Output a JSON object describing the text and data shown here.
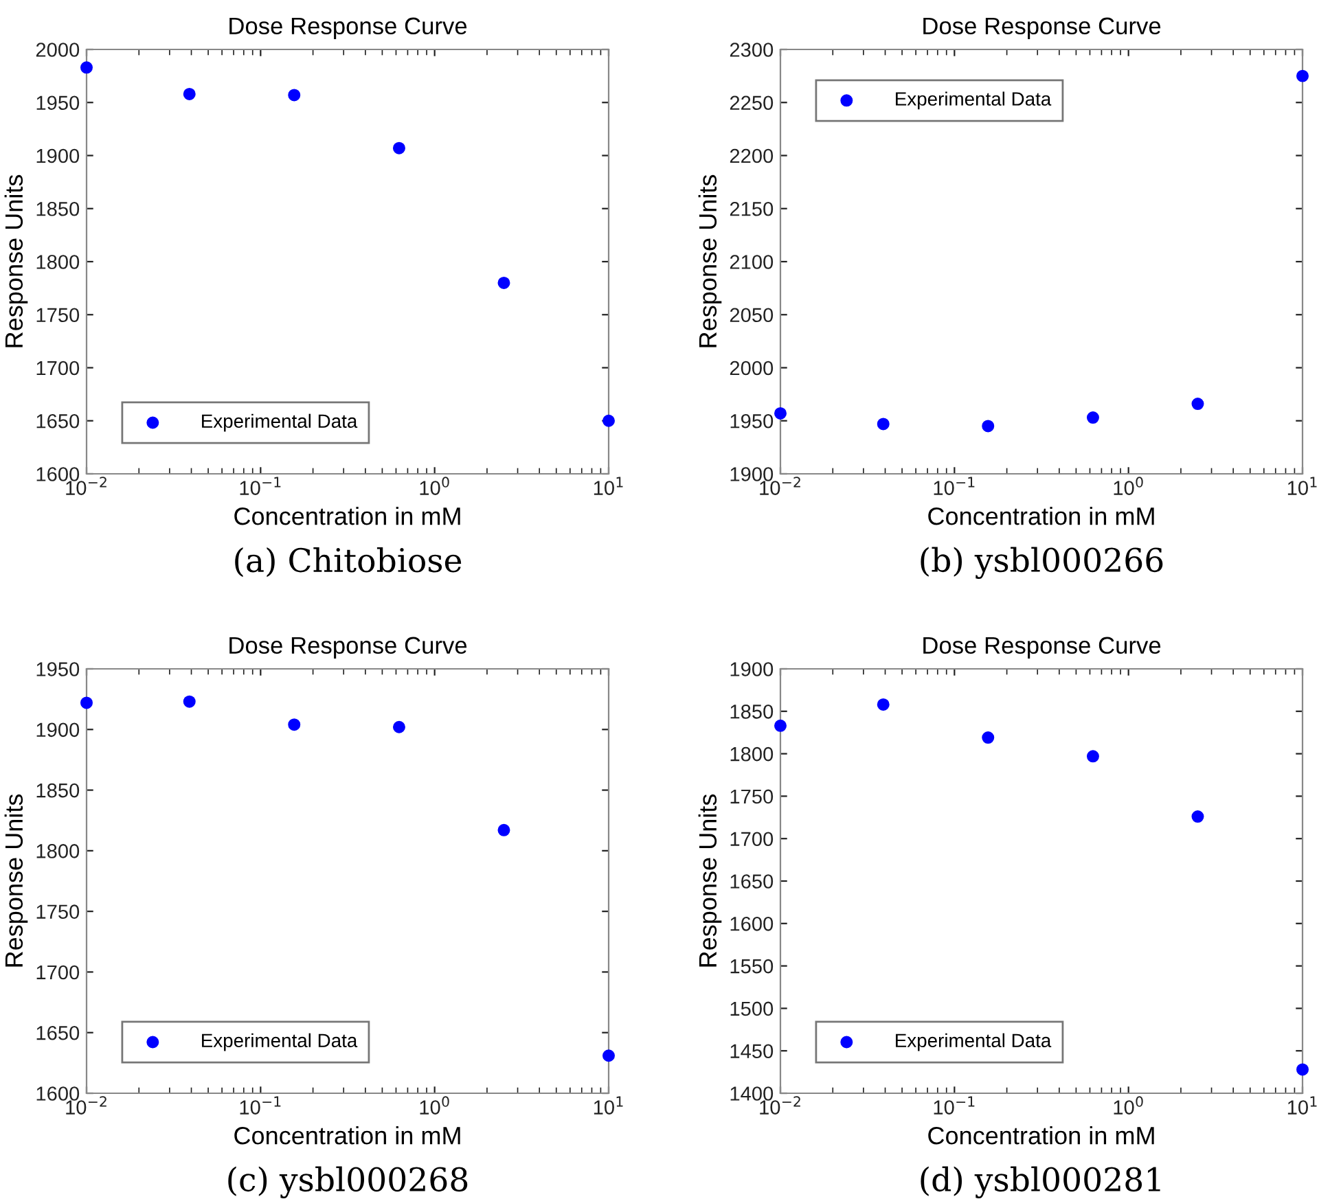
{
  "chart_data": [
    {
      "type": "scatter",
      "title": "Dose Response Curve",
      "xlabel": "Concentration in mM",
      "ylabel": "Response Units",
      "annotations": [
        "(a) Chitobiose"
      ],
      "log": "x",
      "xlim": [
        0.01,
        10
      ],
      "xticks": [
        {
          "value": 0.01,
          "label": "10$^{−2}$"
        },
        {
          "value": 0.1,
          "label": "10$^{−1}$"
        },
        {
          "value": 1,
          "label": "10$^{0}$"
        },
        {
          "value": 10,
          "label": "10$^{1}$"
        }
      ],
      "ylim": [
        1600,
        2000
      ],
      "yticks": [
        1600,
        1650,
        1700,
        1750,
        1800,
        1850,
        1900,
        1950,
        2000
      ],
      "grid": false,
      "legend": "bottom left",
      "marker": "circle",
      "series": [
        {
          "name": "Experimental Data",
          "color": "#0000ff",
          "x": [
            0.01,
            0.039,
            0.156,
            0.625,
            2.5,
            10
          ],
          "values": [
            1983,
            1958,
            1957,
            1907,
            1780,
            1650
          ]
        }
      ]
    },
    {
      "type": "scatter",
      "title": "Dose Response Curve",
      "xlabel": "Concentration in mM",
      "ylabel": "Response Units",
      "annotations": [
        "(b) ysbl000266"
      ],
      "log": "x",
      "xlim": [
        0.01,
        10
      ],
      "xticks": [
        {
          "value": 0.01,
          "label": "10$^{−2}$"
        },
        {
          "value": 0.1,
          "label": "10$^{−1}$"
        },
        {
          "value": 1,
          "label": "10$^{0}$"
        },
        {
          "value": 10,
          "label": "10$^{1}$"
        }
      ],
      "ylim": [
        1900,
        2300
      ],
      "yticks": [
        1900,
        1950,
        2000,
        2050,
        2100,
        2150,
        2200,
        2250,
        2300
      ],
      "grid": false,
      "legend": "top left",
      "marker": "circle",
      "series": [
        {
          "name": "Experimental Data",
          "color": "#0000ff",
          "x": [
            0.01,
            0.039,
            0.156,
            0.625,
            2.5,
            10
          ],
          "values": [
            1957,
            1947,
            1945,
            1953,
            1966,
            2275
          ]
        }
      ]
    },
    {
      "type": "scatter",
      "title": "Dose Response Curve",
      "xlabel": "Concentration in mM",
      "ylabel": "Response Units",
      "annotations": [
        "(c) ysbl000268"
      ],
      "log": "x",
      "xlim": [
        0.01,
        10
      ],
      "xticks": [
        {
          "value": 0.01,
          "label": "10$^{−2}$"
        },
        {
          "value": 0.1,
          "label": "10$^{−1}$"
        },
        {
          "value": 1,
          "label": "10$^{0}$"
        },
        {
          "value": 10,
          "label": "10$^{1}$"
        }
      ],
      "ylim": [
        1600,
        1950
      ],
      "yticks": [
        1600,
        1650,
        1700,
        1750,
        1800,
        1850,
        1900,
        1950
      ],
      "grid": false,
      "legend": "bottom left",
      "marker": "circle",
      "series": [
        {
          "name": "Experimental Data",
          "color": "#0000ff",
          "x": [
            0.01,
            0.039,
            0.156,
            0.625,
            2.5,
            10
          ],
          "values": [
            1922,
            1923,
            1904,
            1902,
            1817,
            1631
          ]
        }
      ]
    },
    {
      "type": "scatter",
      "title": "Dose Response Curve",
      "xlabel": "Concentration in mM",
      "ylabel": "Response Units",
      "annotations": [
        "(d) ysbl000281"
      ],
      "log": "x",
      "xlim": [
        0.01,
        10
      ],
      "xticks": [
        {
          "value": 0.01,
          "label": "10$^{−2}$"
        },
        {
          "value": 0.1,
          "label": "10$^{−1}$"
        },
        {
          "value": 1,
          "label": "10$^{0}$"
        },
        {
          "value": 10,
          "label": "10$^{1}$"
        }
      ],
      "ylim": [
        1400,
        1900
      ],
      "yticks": [
        1400,
        1450,
        1500,
        1550,
        1600,
        1650,
        1700,
        1750,
        1800,
        1850,
        1900
      ],
      "grid": false,
      "legend": "bottom left",
      "marker": "circle",
      "series": [
        {
          "name": "Experimental Data",
          "color": "#0000ff",
          "x": [
            0.01,
            0.039,
            0.156,
            0.625,
            2.5,
            10
          ],
          "values": [
            1833,
            1858,
            1819,
            1797,
            1726,
            1428
          ]
        }
      ]
    }
  ]
}
